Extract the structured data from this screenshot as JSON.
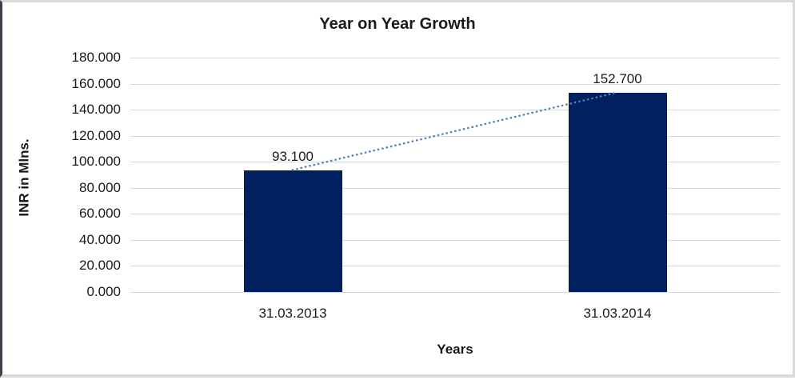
{
  "chart_data": {
    "type": "bar",
    "title": "Year on Year Growth",
    "xlabel": "Years",
    "ylabel": "INR in Mlns.",
    "categories": [
      "31.03.2013",
      "31.03.2014"
    ],
    "values": [
      93.1,
      152.7
    ],
    "value_labels": [
      "93.100",
      "152.700"
    ],
    "ylim": [
      0,
      180
    ],
    "ytick_step": 20,
    "ytick_labels": [
      "0.000",
      "20.000",
      "40.000",
      "60.000",
      "80.000",
      "100.000",
      "120.000",
      "140.000",
      "160.000",
      "180.000"
    ],
    "grid": "horizontal",
    "legend": "none",
    "trendline": {
      "style": "dotted",
      "from_category": "31.03.2013",
      "to_category": "31.03.2014"
    },
    "colors": {
      "bar_fill": "#002060",
      "trendline": "#4f81bd",
      "gridline": "#d9d9d9",
      "axis_line": "#d9d9d9",
      "text": "#1a1a1a",
      "frame_border": "#d9d9d9",
      "frame_border_left": "#41414b",
      "background": "#ffffff"
    }
  }
}
